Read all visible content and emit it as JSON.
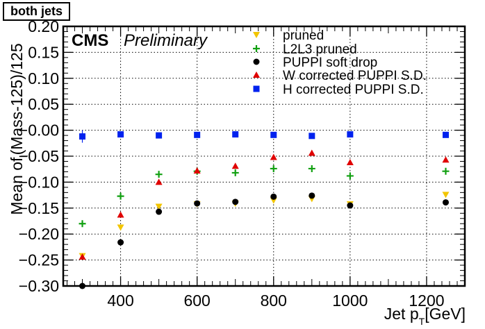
{
  "tag_label": "both jets",
  "chart_data": {
    "type": "scatter",
    "title": "",
    "xlabel": "Jet p_T[GeV]",
    "ylabel": "Mean of_l(Mass-125)/125",
    "xlim": [
      250,
      1300
    ],
    "ylim": [
      -0.3,
      0.2
    ],
    "x_ticks": [
      400,
      600,
      800,
      1000,
      1200
    ],
    "y_ticks": [
      -0.3,
      -0.25,
      -0.2,
      -0.15,
      -0.1,
      -0.05,
      0.0,
      0.05,
      0.1,
      0.15,
      0.2
    ],
    "y_tick_labels": [
      "−0.30",
      "−0.25",
      "−0.20",
      "−0.15",
      "−0.10",
      "−0.05",
      "−0.00",
      "0.05",
      "0.10",
      "0.15",
      "0.20"
    ],
    "grid": true,
    "legend_position": "top-right",
    "annotations": {
      "cms": "CMS",
      "preliminary": "Preliminary"
    },
    "x": [
      300,
      400,
      500,
      600,
      700,
      800,
      900,
      1000,
      1250
    ],
    "series": [
      {
        "name": "pruned",
        "marker": "triangle-down",
        "color": "#f2c500",
        "values": [
          -0.242,
          -0.187,
          -0.147,
          -0.142,
          -0.141,
          -0.135,
          -0.132,
          -0.142,
          -0.124
        ]
      },
      {
        "name": "L2L3 pruned",
        "marker": "plus",
        "color": "#11a011",
        "values": [
          -0.18,
          -0.127,
          -0.085,
          -0.079,
          -0.082,
          -0.074,
          -0.074,
          -0.088,
          -0.079
        ]
      },
      {
        "name": "PUPPI soft drop",
        "marker": "circle",
        "color": "#000000",
        "values": [
          -0.3,
          -0.216,
          -0.157,
          -0.141,
          -0.138,
          -0.128,
          -0.126,
          -0.145,
          -0.139
        ]
      },
      {
        "name": "W corrected PUPPI S.D.",
        "marker": "triangle-up",
        "color": "#e00000",
        "values": [
          -0.244,
          -0.163,
          -0.1,
          -0.078,
          -0.069,
          -0.052,
          -0.044,
          -0.062,
          -0.057
        ]
      },
      {
        "name": "H corrected PUPPI S.D.",
        "marker": "square",
        "color": "#0022ee",
        "values": [
          -0.012,
          -0.008,
          -0.01,
          -0.009,
          -0.008,
          -0.009,
          -0.011,
          -0.008,
          -0.009
        ]
      }
    ]
  }
}
